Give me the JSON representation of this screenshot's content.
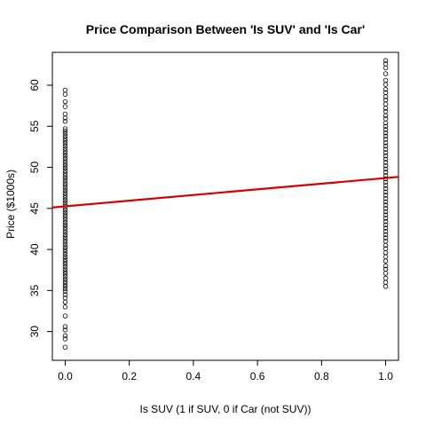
{
  "chart_data": {
    "type": "scatter",
    "title": "Price Comparison Between 'Is SUV' and 'Is Car'",
    "xlabel": "Is SUV (1 if SUV, 0 if Car (not SUV))",
    "ylabel": "Price ($1000s)",
    "xlim": [
      -0.04,
      1.04
    ],
    "ylim": [
      26.5,
      64
    ],
    "xticks": [
      0.0,
      0.2,
      0.4,
      0.6,
      0.8,
      1.0
    ],
    "xtick_labels": [
      "0.0",
      "0.2",
      "0.4",
      "0.6",
      "0.8",
      "1.0"
    ],
    "yticks": [
      30,
      35,
      40,
      45,
      50,
      55,
      60
    ],
    "ytick_labels": [
      "30",
      "35",
      "40",
      "45",
      "50",
      "55",
      "60"
    ],
    "grid": false,
    "series": [
      {
        "x": 0,
        "y": [
          28.1,
          29.1,
          29.5,
          30.2,
          30.6,
          31.9,
          33.0,
          33.6,
          34.1,
          34.5,
          34.9,
          35.2,
          35.5,
          35.8,
          36.1,
          36.4,
          36.7,
          37.0,
          37.3,
          37.6,
          37.9,
          38.2,
          38.5,
          38.8,
          39.1,
          39.4,
          39.7,
          40.0,
          40.3,
          40.6,
          40.9,
          41.2,
          41.5,
          41.8,
          42.1,
          42.4,
          42.7,
          43.0,
          43.3,
          43.6,
          43.9,
          44.2,
          44.5,
          44.8,
          45.1,
          45.4,
          45.7,
          46.0,
          46.3,
          46.6,
          46.9,
          47.2,
          47.5,
          47.8,
          48.1,
          48.4,
          48.7,
          49.0,
          49.3,
          49.6,
          49.9,
          50.2,
          50.5,
          50.8,
          51.1,
          51.4,
          51.7,
          52.0,
          52.3,
          52.6,
          52.9,
          53.2,
          53.5,
          53.8,
          54.1,
          54.4,
          54.7,
          55.6,
          56.0,
          56.5,
          57.4,
          58.0,
          58.9,
          59.4
        ]
      },
      {
        "x": 1,
        "y": [
          35.5,
          36.0,
          36.5,
          37.1,
          37.6,
          38.0,
          38.6,
          39.1,
          39.6,
          40.1,
          40.5,
          41.0,
          41.4,
          41.8,
          42.2,
          42.6,
          43.0,
          43.4,
          43.8,
          44.2,
          44.6,
          45.0,
          45.4,
          45.8,
          46.2,
          46.6,
          47.0,
          47.4,
          47.8,
          48.2,
          48.6,
          49.0,
          49.4,
          49.8,
          50.2,
          50.6,
          51.0,
          51.4,
          51.8,
          52.2,
          52.6,
          53.0,
          53.4,
          53.8,
          54.2,
          54.6,
          55.0,
          55.4,
          55.9,
          56.3,
          56.8,
          57.2,
          57.7,
          58.2,
          58.6,
          59.1,
          59.5,
          60.1,
          60.6,
          61.4,
          62.1,
          62.6,
          63.0
        ]
      }
    ],
    "fit_line": {
      "intercept": 45.25,
      "slope": 3.45,
      "color": "#d40000"
    }
  }
}
